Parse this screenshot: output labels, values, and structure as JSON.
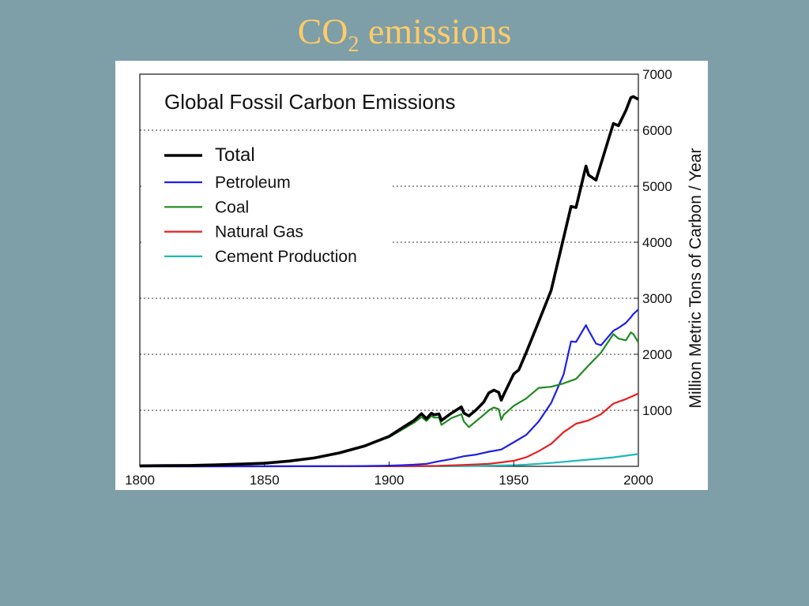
{
  "slide": {
    "title_main": "CO",
    "title_sub": "2",
    "title_rest": " emissions"
  },
  "colors": {
    "background": "#7e9ea8",
    "title": "#ffcc66",
    "total": "#000000",
    "petroleum": "#1f1fe6",
    "coal": "#1f8a1f",
    "natural_gas": "#e61f1f",
    "cement": "#1fb8b8"
  },
  "chart_data": {
    "type": "line",
    "title": "Global Fossil Carbon Emissions",
    "xlabel": "",
    "ylabel": "Million Metric Tons of Carbon / Year",
    "xlim": [
      1800,
      2000
    ],
    "ylim": [
      0,
      7000
    ],
    "xticks": [
      1800,
      1850,
      1900,
      1950,
      2000
    ],
    "yticks": [
      1000,
      2000,
      3000,
      4000,
      5000,
      6000,
      7000
    ],
    "grid": "horizontal dotted",
    "y_axis_side": "right",
    "legend_position": "top-left",
    "series": [
      {
        "name": "Total",
        "color_key": "total",
        "x": [
          1800,
          1810,
          1820,
          1830,
          1840,
          1850,
          1860,
          1870,
          1880,
          1890,
          1900,
          1905,
          1910,
          1913,
          1915,
          1917,
          1918,
          1920,
          1921,
          1925,
          1929,
          1930,
          1932,
          1935,
          1938,
          1940,
          1942,
          1944,
          1945,
          1946,
          1950,
          1952,
          1955,
          1960,
          1965,
          1970,
          1973,
          1975,
          1979,
          1980,
          1983,
          1985,
          1990,
          1992,
          1995,
          1997,
          1998,
          2000
        ],
        "y": [
          8,
          12,
          15,
          25,
          40,
          55,
          95,
          150,
          240,
          360,
          535,
          680,
          820,
          940,
          850,
          950,
          920,
          935,
          820,
          950,
          1060,
          950,
          900,
          1010,
          1150,
          1310,
          1360,
          1320,
          1180,
          1280,
          1650,
          1720,
          2030,
          2580,
          3140,
          4080,
          4640,
          4620,
          5360,
          5200,
          5110,
          5400,
          6120,
          6080,
          6350,
          6580,
          6600,
          6550
        ]
      },
      {
        "name": "Petroleum",
        "color_key": "petroleum",
        "x": [
          1800,
          1870,
          1880,
          1890,
          1900,
          1905,
          1910,
          1915,
          1920,
          1925,
          1930,
          1935,
          1940,
          1945,
          1950,
          1955,
          1960,
          1965,
          1970,
          1973,
          1975,
          1979,
          1980,
          1983,
          1985,
          1990,
          1992,
          1995,
          1997,
          1998,
          2000
        ],
        "y": [
          0,
          1,
          3,
          6,
          12,
          20,
          30,
          45,
          90,
          130,
          180,
          210,
          260,
          300,
          430,
          560,
          800,
          1130,
          1640,
          2230,
          2220,
          2520,
          2430,
          2190,
          2160,
          2420,
          2470,
          2560,
          2660,
          2720,
          2800
        ]
      },
      {
        "name": "Coal",
        "color_key": "coal",
        "x": [
          1800,
          1810,
          1820,
          1830,
          1840,
          1850,
          1860,
          1870,
          1880,
          1890,
          1900,
          1905,
          1910,
          1913,
          1915,
          1917,
          1918,
          1920,
          1921,
          1925,
          1929,
          1930,
          1932,
          1935,
          1938,
          1940,
          1942,
          1944,
          1945,
          1946,
          1950,
          1955,
          1960,
          1965,
          1970,
          1975,
          1980,
          1985,
          1990,
          1992,
          1995,
          1997,
          1998,
          2000
        ],
        "y": [
          8,
          12,
          15,
          25,
          40,
          55,
          95,
          150,
          240,
          360,
          520,
          650,
          780,
          880,
          810,
          900,
          870,
          870,
          740,
          860,
          930,
          800,
          700,
          810,
          920,
          1000,
          1050,
          1020,
          830,
          920,
          1080,
          1210,
          1400,
          1420,
          1480,
          1560,
          1800,
          2030,
          2360,
          2280,
          2250,
          2390,
          2360,
          2210
        ]
      },
      {
        "name": "Natural Gas",
        "color_key": "natural_gas",
        "x": [
          1800,
          1900,
          1910,
          1920,
          1930,
          1940,
          1945,
          1950,
          1955,
          1960,
          1965,
          1970,
          1975,
          1980,
          1985,
          1990,
          1995,
          2000
        ],
        "y": [
          0,
          2,
          5,
          10,
          25,
          45,
          70,
          100,
          160,
          270,
          400,
          610,
          760,
          820,
          930,
          1120,
          1200,
          1300
        ]
      },
      {
        "name": "Cement Production",
        "color_key": "cement",
        "x": [
          1800,
          1920,
          1930,
          1940,
          1950,
          1955,
          1960,
          1965,
          1970,
          1975,
          1980,
          1985,
          1990,
          1995,
          2000
        ],
        "y": [
          0,
          2,
          6,
          12,
          20,
          30,
          45,
          60,
          80,
          100,
          120,
          140,
          160,
          190,
          220
        ]
      }
    ]
  }
}
